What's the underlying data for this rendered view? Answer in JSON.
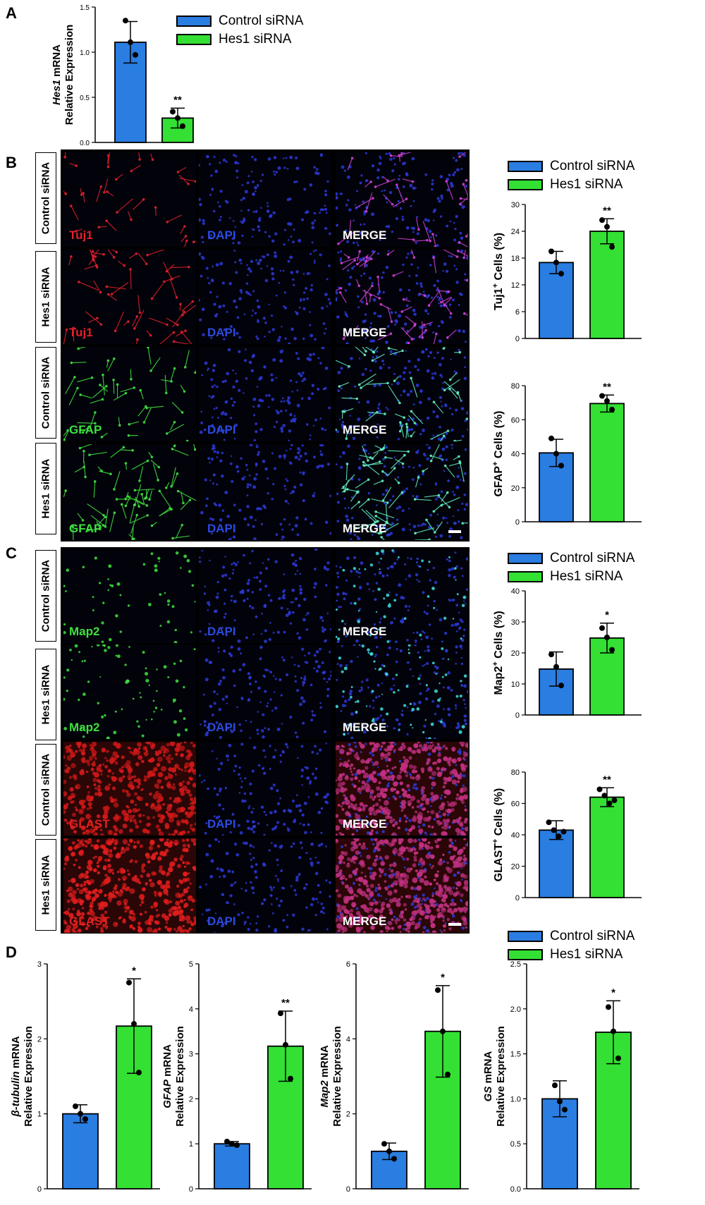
{
  "panels": {
    "a": "A",
    "b": "B",
    "c": "C",
    "d": "D"
  },
  "legend": {
    "control": "Control siRNA",
    "hes1": "Hes1 siRNA"
  },
  "colors": {
    "control": "#2a7de1",
    "hes1": "#33e033",
    "axis": "#000000"
  },
  "row_labels": {
    "control": "Control siRNA",
    "hes1": "Hes1 siRNA"
  },
  "micrograph_labels": {
    "tuj1": "Tuj1",
    "gfap": "GFAP",
    "map2": "Map2",
    "glast": "GLAST",
    "dapi": "DAPI",
    "merge": "MERGE"
  },
  "chart_data": [
    {
      "id": "A-hes1",
      "type": "bar",
      "categories": [
        "Control siRNA",
        "Hes1 siRNA"
      ],
      "values": [
        1.11,
        0.27
      ],
      "errors": [
        0.23,
        0.11
      ],
      "points": [
        [
          1.35,
          1.11,
          0.97
        ],
        [
          0.34,
          0.27,
          0.18
        ]
      ],
      "significance": [
        "",
        "**"
      ],
      "ylabel_italic": "Hes1",
      "ylabel_rest": " mRNA",
      "ylabel2": "Relative Expression",
      "ylim": [
        0,
        1.5
      ],
      "yticks": [
        "0.0",
        "0.5",
        "1.0",
        "1.5"
      ]
    },
    {
      "id": "B-tuj1",
      "type": "bar",
      "categories": [
        "Control siRNA",
        "Hes1 siRNA"
      ],
      "values": [
        17,
        24
      ],
      "errors": [
        2.5,
        2.8
      ],
      "points": [
        [
          19.5,
          17,
          14.5
        ],
        [
          26.5,
          25,
          20.5
        ]
      ],
      "significance": [
        "",
        "**"
      ],
      "ylabel": "Tuj1",
      "ylabel_sup": "+",
      "ylabel_rest": " Cells  (%)",
      "ylim": [
        0,
        30
      ],
      "yticks": [
        "0",
        "6",
        "12",
        "18",
        "24",
        "30"
      ]
    },
    {
      "id": "B-gfap",
      "type": "bar",
      "categories": [
        "Control siRNA",
        "Hes1 siRNA"
      ],
      "values": [
        40.5,
        69.5
      ],
      "errors": [
        8,
        5
      ],
      "points": [
        [
          49,
          40,
          33
        ],
        [
          74,
          71,
          66
        ]
      ],
      "significance": [
        "",
        "**"
      ],
      "ylabel": "GFAP",
      "ylabel_sup": "+",
      "ylabel_rest": " Cells  (%)",
      "ylim": [
        0,
        80
      ],
      "yticks": [
        "0",
        "20",
        "40",
        "60",
        "80"
      ]
    },
    {
      "id": "C-map2",
      "type": "bar",
      "categories": [
        "Control siRNA",
        "Hes1 siRNA"
      ],
      "values": [
        14.8,
        24.8
      ],
      "errors": [
        5.5,
        4.8
      ],
      "points": [
        [
          19.5,
          15.5,
          9.5
        ],
        [
          28,
          25,
          21
        ]
      ],
      "significance": [
        "",
        "*"
      ],
      "ylabel": "Map2",
      "ylabel_sup": "+",
      "ylabel_rest": " Cells  (%)",
      "ylim": [
        0,
        40
      ],
      "yticks": [
        "0",
        "10",
        "20",
        "30",
        "40"
      ]
    },
    {
      "id": "C-glast",
      "type": "bar",
      "categories": [
        "Control siRNA",
        "Hes1 siRNA"
      ],
      "values": [
        43,
        64
      ],
      "errors": [
        6,
        6
      ],
      "points": [
        [
          48,
          43,
          39,
          42
        ],
        [
          69,
          65,
          60,
          62
        ]
      ],
      "significance": [
        "",
        "**"
      ],
      "ylabel": "GLAST",
      "ylabel_sup": "+",
      "ylabel_rest": " Cells  (%)",
      "ylim": [
        0,
        80
      ],
      "yticks": [
        "0",
        "20",
        "40",
        "60",
        "80"
      ]
    },
    {
      "id": "D-btubulin",
      "type": "bar",
      "categories": [
        "Control siRNA",
        "Hes1 siRNA"
      ],
      "values": [
        1.0,
        2.17
      ],
      "errors": [
        0.12,
        0.63
      ],
      "points": [
        [
          1.1,
          1.0,
          0.93
        ],
        [
          2.75,
          2.2,
          1.55
        ]
      ],
      "significance": [
        "",
        "*"
      ],
      "ylabel_italic": "β-tubulin",
      "ylabel_rest": " mRNA",
      "ylabel2": "Relative Expression",
      "ylim": [
        0,
        3
      ],
      "yticks": [
        "0",
        "1",
        "2",
        "3"
      ]
    },
    {
      "id": "D-gfap",
      "type": "bar",
      "categories": [
        "Control siRNA",
        "Hes1 siRNA"
      ],
      "values": [
        1.0,
        3.17
      ],
      "errors": [
        0.05,
        0.78
      ],
      "points": [
        [
          1.05,
          1.0,
          0.97
        ],
        [
          3.9,
          3.2,
          2.45
        ]
      ],
      "significance": [
        "",
        "**"
      ],
      "ylabel_italic": "GFAP",
      "ylabel_rest": " mRNA",
      "ylabel2": "Relative Expression",
      "ylim": [
        0,
        5
      ],
      "yticks": [
        "0",
        "1",
        "2",
        "3",
        "4",
        "5"
      ]
    },
    {
      "id": "D-map2",
      "type": "bar",
      "categories": [
        "Control siRNA",
        "Hes1 siRNA"
      ],
      "values": [
        1.0,
        4.2
      ],
      "errors": [
        0.22,
        1.22
      ],
      "points": [
        [
          1.2,
          1.0,
          0.8
        ],
        [
          5.3,
          4.2,
          3.05
        ]
      ],
      "significance": [
        "",
        "*"
      ],
      "ylabel_italic": "Map2",
      "ylabel_rest": " mRNA",
      "ylabel2": "Relative Expression",
      "ylim": [
        0,
        6
      ],
      "yticks": [
        "0",
        "2",
        "4",
        "6"
      ]
    },
    {
      "id": "D-gs",
      "type": "bar",
      "categories": [
        "Control siRNA",
        "Hes1 siRNA"
      ],
      "values": [
        1.0,
        1.74
      ],
      "errors": [
        0.2,
        0.35
      ],
      "points": [
        [
          1.15,
          0.97,
          0.88
        ],
        [
          2.02,
          1.75,
          1.45
        ]
      ],
      "significance": [
        "",
        "*"
      ],
      "ylabel_italic": "GS",
      "ylabel_rest": " mRNA",
      "ylabel2": "Relative Expression",
      "ylim": [
        0,
        2.5
      ],
      "yticks": [
        "0.0",
        "0.5",
        "1.0",
        "1.5",
        "2.0",
        "2.5"
      ]
    }
  ]
}
